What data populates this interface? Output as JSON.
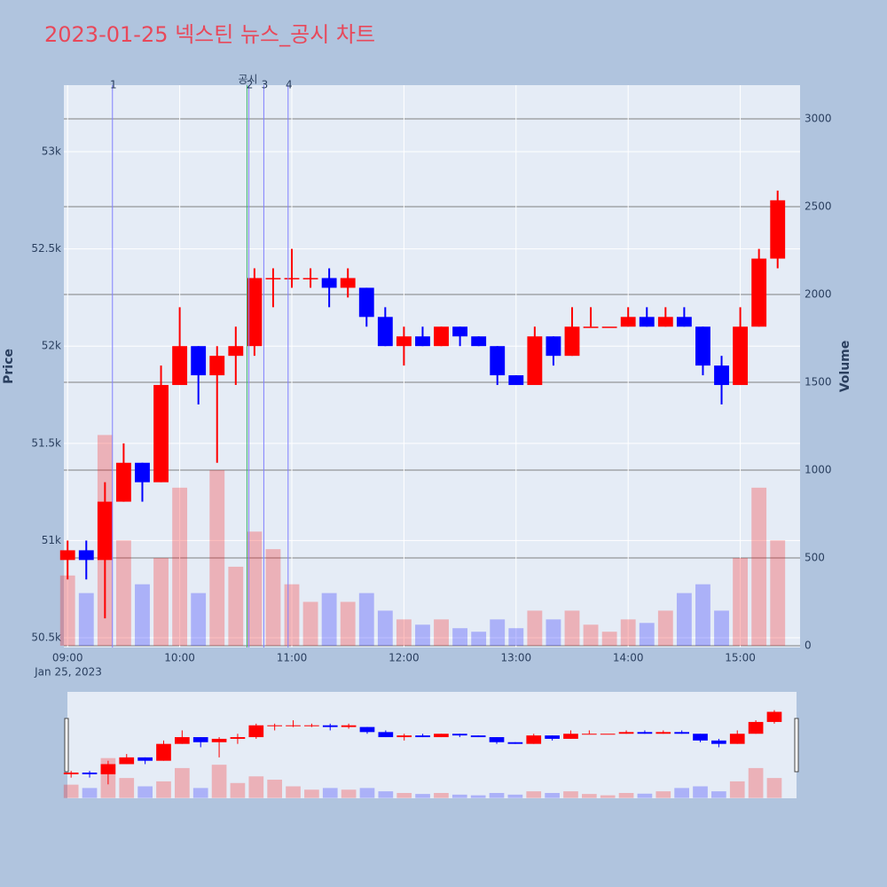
{
  "chart_data": {
    "type": "candlestick",
    "title": "2023-01-25 넥스틴 뉴스_공시 차트",
    "y_label": "Price",
    "y2_label": "Volume",
    "x_date": "Jan 25, 2023",
    "x": [
      "09:00",
      "09:10",
      "09:20",
      "09:30",
      "09:40",
      "09:50",
      "10:00",
      "10:10",
      "10:20",
      "10:30",
      "10:40",
      "10:50",
      "11:00",
      "11:10",
      "11:20",
      "11:30",
      "11:40",
      "11:50",
      "12:00",
      "12:10",
      "12:20",
      "12:30",
      "12:40",
      "12:50",
      "13:00",
      "13:10",
      "13:20",
      "13:30",
      "13:40",
      "13:50",
      "14:00",
      "14:10",
      "14:20",
      "14:30",
      "14:40",
      "14:50",
      "15:00",
      "15:10",
      "15:20"
    ],
    "open": [
      50900,
      50950,
      50900,
      51200,
      51400,
      51300,
      51800,
      52000,
      51850,
      51950,
      52000,
      52350,
      52350,
      52350,
      52350,
      52300,
      52300,
      52150,
      52000,
      52050,
      52000,
      52100,
      52050,
      52000,
      51850,
      51800,
      52050,
      51950,
      52100,
      52100,
      52100,
      52150,
      52100,
      52150,
      52100,
      51900,
      51800,
      52100,
      52450
    ],
    "high": [
      51000,
      51000,
      51300,
      51500,
      51400,
      51900,
      52200,
      52000,
      52000,
      52100,
      52400,
      52400,
      52500,
      52400,
      52400,
      52400,
      52300,
      52200,
      52100,
      52100,
      52100,
      52100,
      52050,
      52000,
      51850,
      52100,
      52050,
      52200,
      52200,
      52100,
      52200,
      52200,
      52200,
      52200,
      52100,
      51950,
      52200,
      52500,
      52800
    ],
    "low": [
      50800,
      50800,
      50600,
      51200,
      51200,
      51300,
      51800,
      51700,
      51400,
      51800,
      51950,
      52200,
      52300,
      52300,
      52200,
      52250,
      52100,
      52000,
      51900,
      52000,
      52000,
      52000,
      52000,
      51800,
      51800,
      51800,
      51900,
      51950,
      52100,
      52100,
      52100,
      52100,
      52100,
      52100,
      51850,
      51700,
      51800,
      52100,
      52400
    ],
    "close": [
      50950,
      50900,
      51200,
      51400,
      51300,
      51800,
      52000,
      51850,
      51950,
      52000,
      52350,
      52350,
      52350,
      52350,
      52300,
      52350,
      52150,
      52000,
      52050,
      52000,
      52100,
      52050,
      52000,
      51850,
      51800,
      52050,
      51950,
      52100,
      52100,
      52100,
      52150,
      52100,
      52150,
      52100,
      51900,
      51800,
      52100,
      52450,
      52750
    ],
    "volume": [
      400,
      300,
      1200,
      600,
      350,
      500,
      900,
      300,
      1000,
      450,
      650,
      550,
      350,
      250,
      300,
      250,
      300,
      200,
      150,
      120,
      150,
      100,
      80,
      150,
      100,
      200,
      150,
      200,
      120,
      80,
      150,
      130,
      200,
      300,
      350,
      200,
      500,
      900,
      600
    ],
    "increasing_color": "#ff0000",
    "decreasing_color": "#0000ff",
    "xlim": [
      "08:58",
      "15:32"
    ],
    "xticks": [
      "09:00",
      "10:00",
      "11:00",
      "12:00",
      "13:00",
      "14:00",
      "15:00"
    ],
    "ylim": [
      50450,
      53342
    ],
    "yticks": [
      {
        "value": 50500,
        "label": "50.5k"
      },
      {
        "value": 51000,
        "label": "51k"
      },
      {
        "value": 51500,
        "label": "51.5k"
      },
      {
        "value": 52000,
        "label": "52k"
      },
      {
        "value": 52500,
        "label": "52.5k"
      },
      {
        "value": 53000,
        "label": "53k"
      }
    ],
    "y2lim": [
      -10,
      3192
    ],
    "y2ticks": [
      0,
      500,
      1000,
      1500,
      2000,
      2500,
      3000
    ],
    "vlines": [
      {
        "x": "09:24",
        "label": "1",
        "color": "#8080ff"
      },
      {
        "x": "10:36",
        "label": "공시",
        "color": "#3cb371"
      },
      {
        "x": "10:37",
        "label": "2",
        "color": "#8080ff"
      },
      {
        "x": "10:45",
        "label": "3",
        "color": "#8080ff"
      },
      {
        "x": "10:58",
        "label": "4",
        "color": "#8080ff"
      }
    ]
  }
}
